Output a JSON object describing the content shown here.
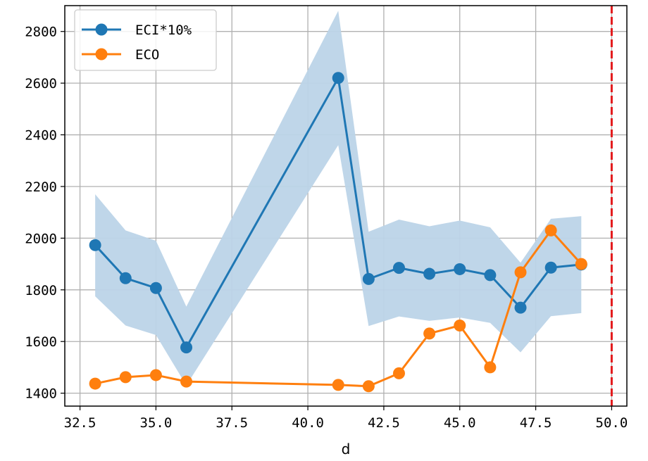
{
  "chart_data": {
    "type": "line",
    "title": "",
    "xlabel": "d",
    "ylabel": "",
    "xlim": [
      32.0,
      50.5
    ],
    "ylim": [
      1350,
      2900
    ],
    "x_ticks": [
      "32.5",
      "35.0",
      "37.5",
      "40.0",
      "42.5",
      "45.0",
      "47.5",
      "50.0"
    ],
    "y_ticks": [
      "1400",
      "1600",
      "1800",
      "2000",
      "2200",
      "2400",
      "2600",
      "2800"
    ],
    "grid": true,
    "legend_position": "top-left",
    "x": [
      33,
      34,
      35,
      36,
      41,
      42,
      43,
      44,
      45,
      46,
      47,
      48,
      49
    ],
    "series": [
      {
        "name": "ECI*10%",
        "color": "#1f77b4",
        "marker": "circle",
        "values": [
          1973,
          1845,
          1807,
          1577,
          2620,
          1842,
          1885,
          1862,
          1880,
          1857,
          1731,
          1886,
          1898
        ],
        "band_upper": [
          2170,
          2030,
          1990,
          1735,
          2880,
          2025,
          2072,
          2046,
          2068,
          2042,
          1905,
          2075,
          2085
        ],
        "band_lower": [
          1775,
          1662,
          1625,
          1430,
          2360,
          1660,
          1697,
          1680,
          1693,
          1672,
          1558,
          1698,
          1710
        ],
        "band_color": "#bcd4e8"
      },
      {
        "name": "ECO",
        "color": "#ff7f0e",
        "marker": "circle",
        "values": [
          1437,
          1462,
          1470,
          1445,
          1432,
          1427,
          1477,
          1631,
          1662,
          1500,
          1868,
          2030,
          1900
        ]
      }
    ],
    "reference_lines": [
      {
        "axis": "x",
        "value": 50,
        "color": "#e31a1c",
        "style": "dashed"
      }
    ]
  }
}
